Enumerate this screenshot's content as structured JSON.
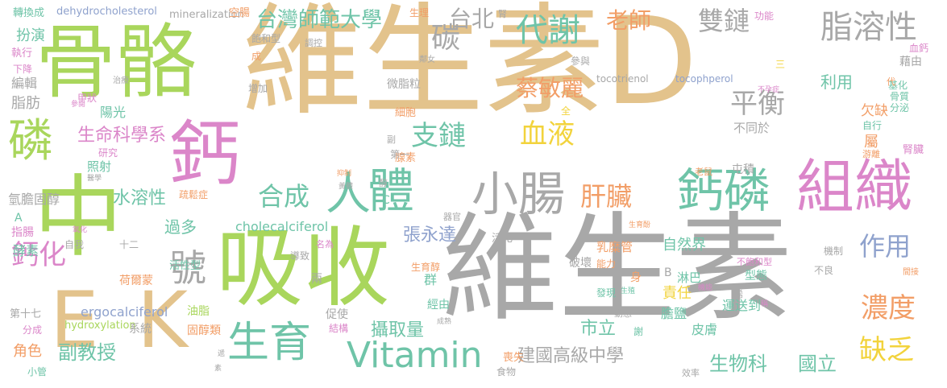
{
  "colors": {
    "tan": "#e3c38c",
    "gray": "#a8a8a8",
    "green": "#a9d65c",
    "teal": "#6fc4a8",
    "pink": "#db86c9",
    "orange": "#f29e67",
    "blue": "#8fa2cd",
    "yellow": "#f2d33c",
    "background": "#ffffff"
  },
  "words": [
    "維生素D",
    "維生素",
    "吸收",
    "骨骼",
    "中",
    "鈣",
    "磷",
    "E",
    "K",
    "組織",
    "鈣磷",
    "小腸",
    "體",
    "人",
    "生育",
    "Vitamin",
    "脂溶性",
    "代謝",
    "雙鏈",
    "碳",
    "台北",
    "老師",
    "台灣師範大學",
    "支鏈",
    "血液",
    "平衡",
    "合成",
    "肝臟",
    "濃度",
    "作用",
    "缺乏",
    "號",
    "鈣化",
    "蔡敏麗",
    "建國高級中學",
    "國立",
    "生物科",
    "副教授",
    "市立",
    "攝取量",
    "張永達",
    "生命科學系",
    "水溶性",
    "過多",
    "cholecalciferol",
    "ergocalciferol",
    "hydroxylation",
    "dehydrocholesterol",
    "mineralization",
    "tocotrienol",
    "tocophperol",
    "轉換成",
    "扮演",
    "執行",
    "編輯",
    "脂肪",
    "陽光",
    "照射",
    "氫膽固醇",
    "指腸",
    "酵素",
    "角色",
    "第十七",
    "分成",
    "小管",
    "自然界",
    "責任",
    "淋巴",
    "膽鹽",
    "皮膚",
    "運送到",
    "乳糜管",
    "微脂粒",
    "細胞",
    "腺素",
    "欠缺",
    "利用",
    "屯積",
    "不同於",
    "空腸",
    "飽和型",
    "生理",
    "功能",
    "藉由",
    "基化",
    "骨質",
    "分泌",
    "自行",
    "屬",
    "腎臟",
    "血鈣",
    "能力",
    "發現",
    "身",
    "型態",
    "經由",
    "群",
    "固醇類",
    "油脂",
    "結構",
    "促使",
    "系統",
    "活性型",
    "荷爾蒙",
    "導致",
    "名為",
    "破壞",
    "機制",
    "不良",
    "喪失",
    "食物",
    "效率",
    "動態",
    "十二",
    "自我",
    "研究",
    "甲狀",
    "第一",
    "疏鬆症",
    "活化",
    "兩",
    "全",
    "參與",
    "調控",
    "成",
    "下降",
    "增加",
    "三",
    "B",
    "A",
    "C",
    "不飽和型",
    "老鼠",
    "代",
    "副",
    "器官",
    "醇",
    "生育醇",
    "鄰女",
    "治療",
    "參閱",
    "醫學",
    "抑制",
    "黃體",
    "氧化",
    "不孕症",
    "游離",
    "生殖",
    "間接",
    "烯",
    "謝",
    "遞",
    "素",
    "成熟",
    "稱",
    "腎",
    "生育酚",
    "機能"
  ]
}
